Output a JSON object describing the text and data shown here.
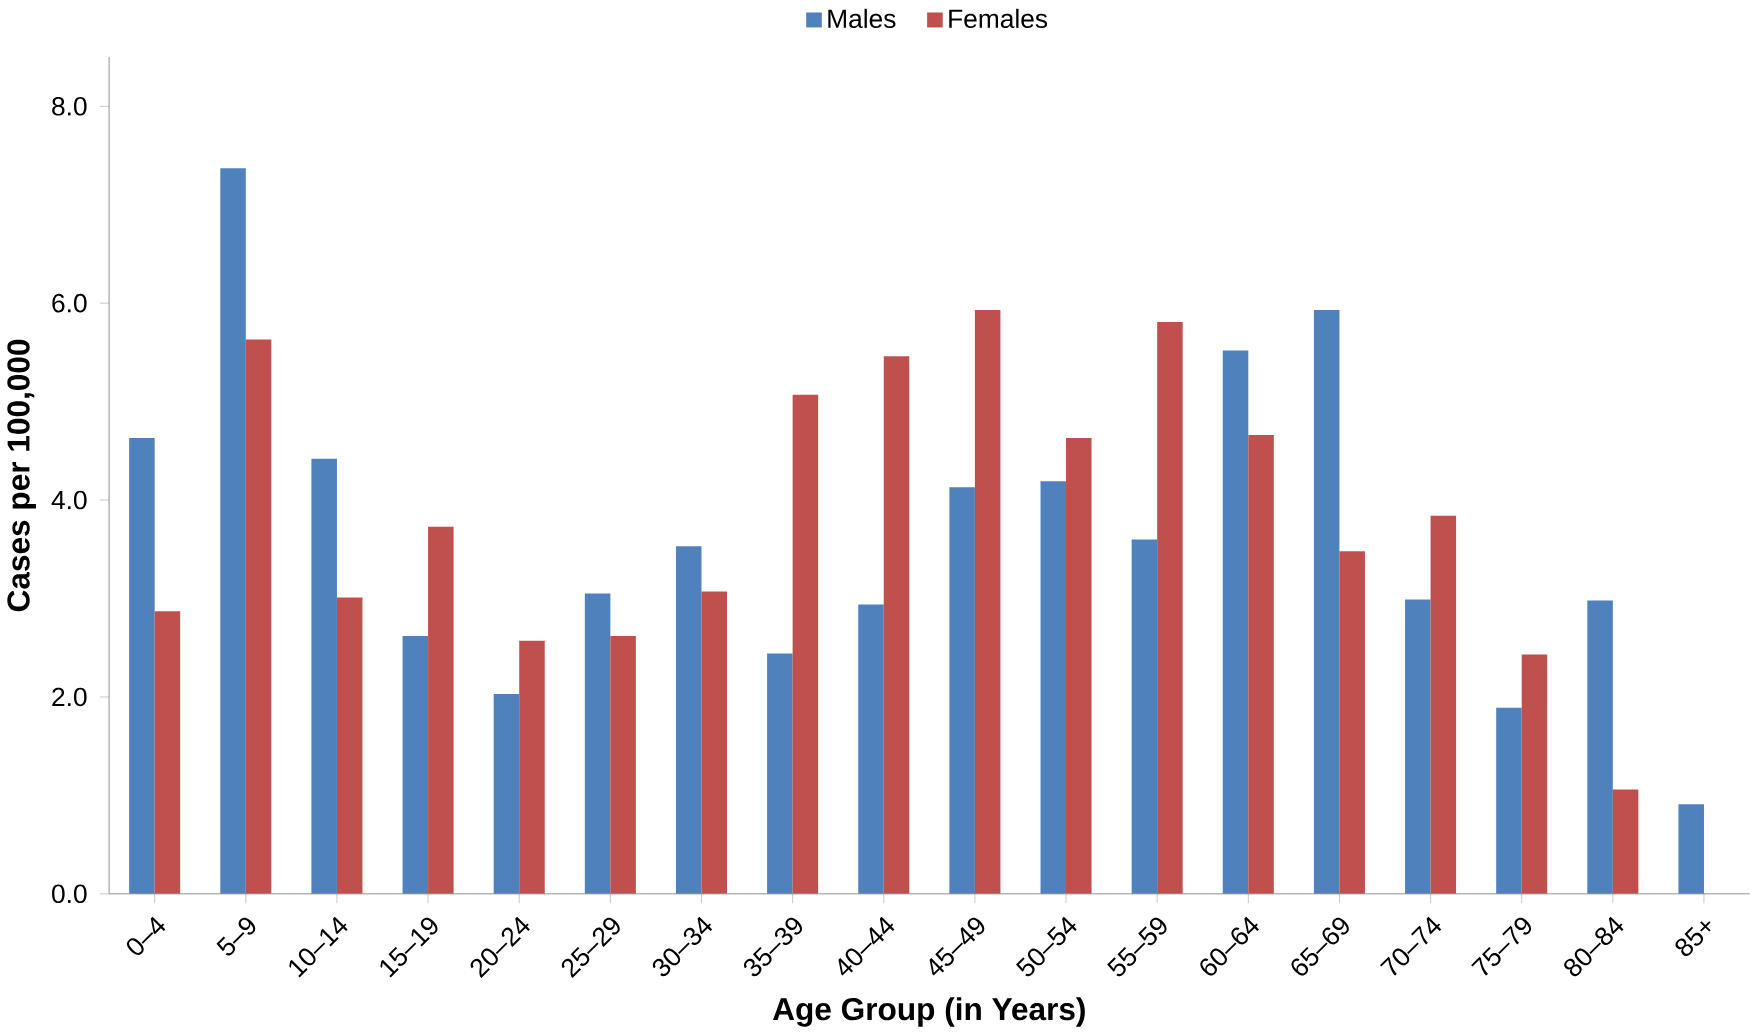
{
  "chart_data": {
    "type": "bar",
    "xlabel": "Age Group (in Years)",
    "ylabel": "Cases per  100,000",
    "categories": [
      "0–4",
      "5–9",
      "10–14",
      "15–19",
      "20–24",
      "25–29",
      "30–34",
      "35–39",
      "40–44",
      "45–49",
      "50–54",
      "55–59",
      "60–64",
      "65–69",
      "70–74",
      "75–79",
      "80–84",
      "85+"
    ],
    "series": [
      {
        "name": "Males",
        "color": "#4f81bd",
        "values": [
          4.63,
          7.37,
          4.42,
          2.62,
          2.03,
          3.05,
          3.53,
          2.44,
          2.94,
          4.13,
          4.19,
          3.6,
          5.52,
          5.93,
          2.99,
          1.89,
          2.98,
          0.91
        ]
      },
      {
        "name": "Females",
        "color": "#c0504d",
        "values": [
          2.87,
          5.63,
          3.01,
          3.73,
          2.57,
          2.62,
          3.07,
          5.07,
          5.46,
          5.93,
          4.63,
          5.81,
          4.66,
          3.48,
          3.84,
          2.43,
          1.06,
          null
        ]
      }
    ],
    "ylim": [
      0,
      8.5
    ],
    "yticks": [
      {
        "value": 0,
        "label": "0.0"
      },
      {
        "value": 2,
        "label": "2.0"
      },
      {
        "value": 4,
        "label": "4.0"
      },
      {
        "value": 6,
        "label": "6.0"
      },
      {
        "value": 8,
        "label": "8.0"
      }
    ],
    "grid": false,
    "legend": "top"
  }
}
